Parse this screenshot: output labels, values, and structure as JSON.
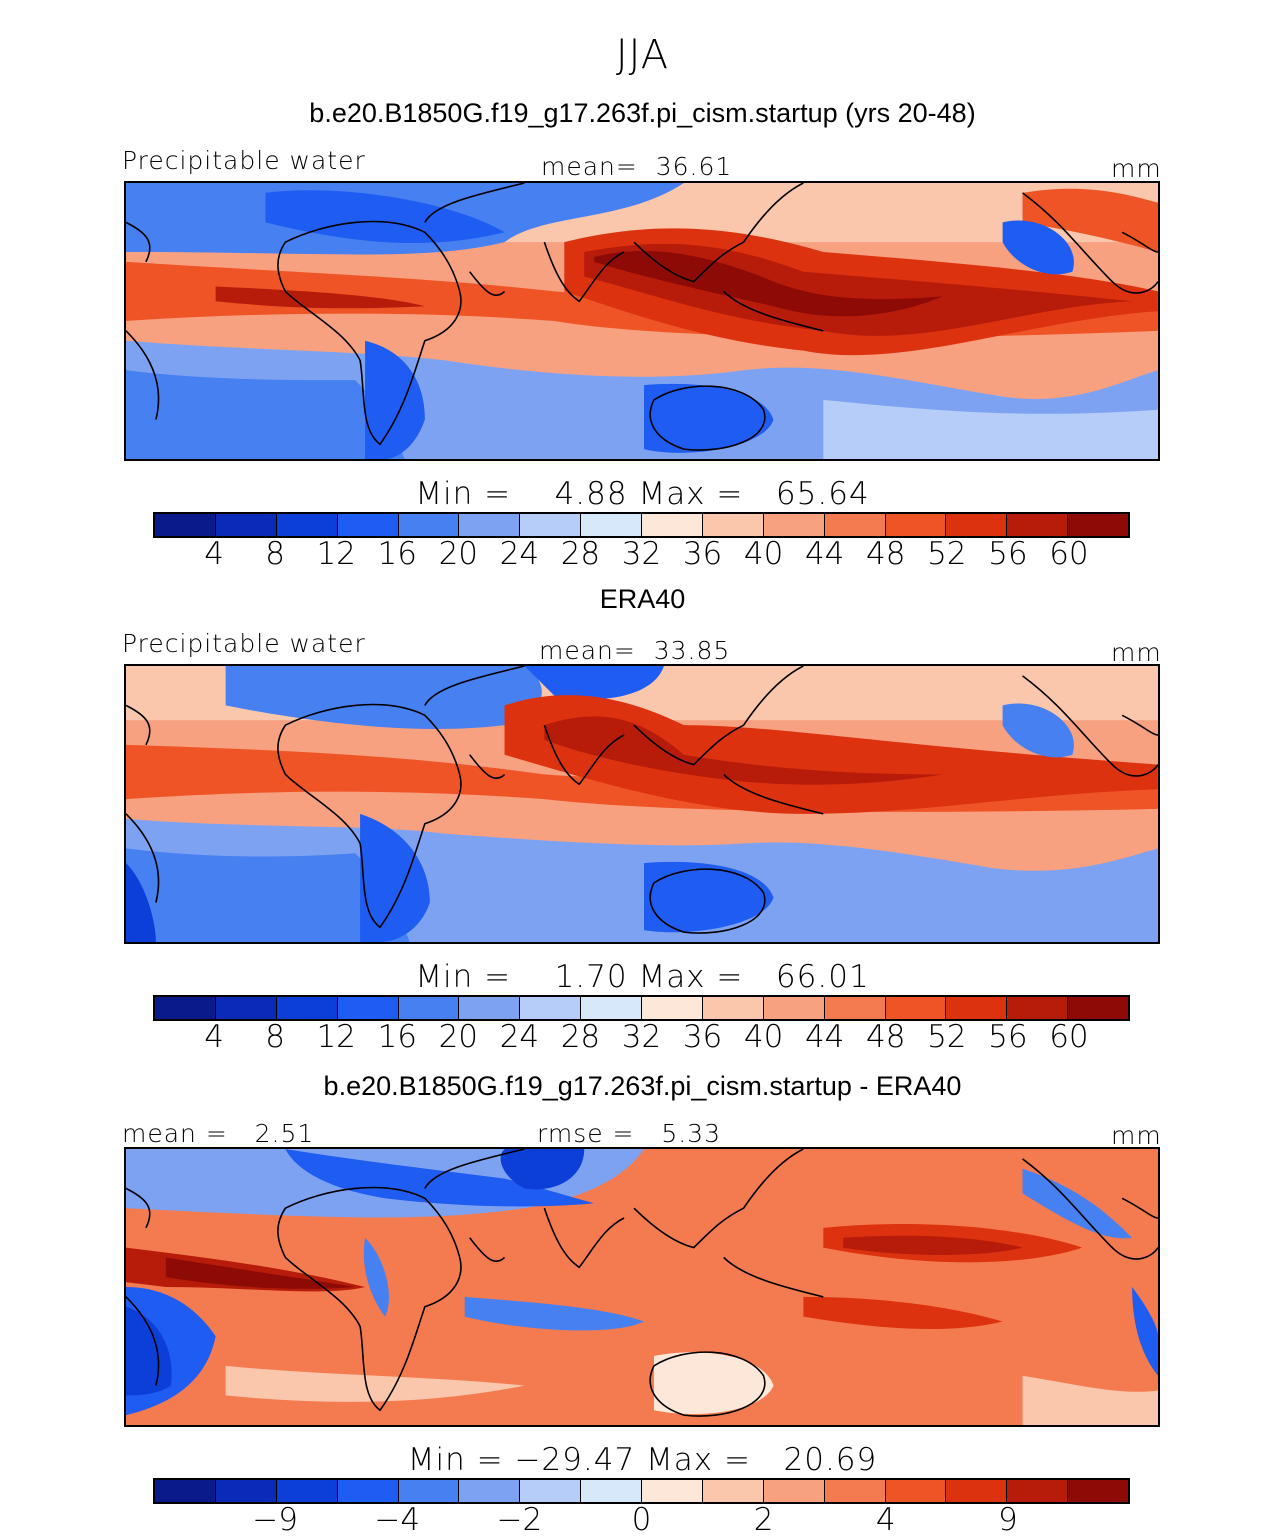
{
  "title": "JJA",
  "colorbar_colors": [
    "#0a1a88",
    "#0b2ab8",
    "#0c3ed8",
    "#1e5cf2",
    "#4780f0",
    "#7ea2f2",
    "#b5cdf8",
    "#d8e8fb",
    "#fde7d8",
    "#fac7ad",
    "#f7a180",
    "#f47b50",
    "#ef5426",
    "#dd3210",
    "#b71c0a",
    "#8e0a06"
  ],
  "panels": [
    {
      "title": "b.e20.B1850G.f19_g17.263f.pi_cism.startup (yrs 20-48)",
      "left_label": "Precipitable water",
      "center_label": "mean=  36.61",
      "right_label": "mm",
      "minmax": "Min =    4.88 Max =   65.64",
      "ticks": [
        "4",
        "8",
        "12",
        "16",
        "20",
        "24",
        "28",
        "32",
        "36",
        "40",
        "44",
        "48",
        "52",
        "56",
        "60"
      ]
    },
    {
      "title": "ERA40",
      "left_label": "Precipitable water",
      "center_label": "mean=  33.85",
      "right_label": "mm",
      "minmax": "Min =    1.70 Max =   66.01",
      "ticks": [
        "4",
        "8",
        "12",
        "16",
        "20",
        "24",
        "28",
        "32",
        "36",
        "40",
        "44",
        "48",
        "52",
        "56",
        "60"
      ]
    },
    {
      "title": "b.e20.B1850G.f19_g17.263f.pi_cism.startup - ERA40",
      "left_label": "mean =   2.51",
      "center_label": "rmse =   5.33",
      "right_label": "mm",
      "minmax": "Min = −29.47 Max =   20.69",
      "ticks": [
        "−9",
        "−4",
        "−2",
        "0",
        "2",
        "4",
        "9"
      ],
      "tick_positions": [
        2,
        4,
        6,
        8,
        10,
        12,
        14
      ]
    }
  ]
}
